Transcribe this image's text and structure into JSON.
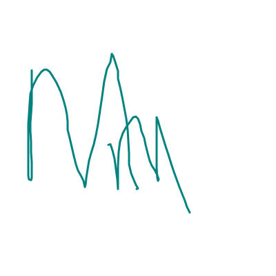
{
  "drawing": {
    "stroke_color": "#00827f",
    "background_color": "#ffffff"
  }
}
